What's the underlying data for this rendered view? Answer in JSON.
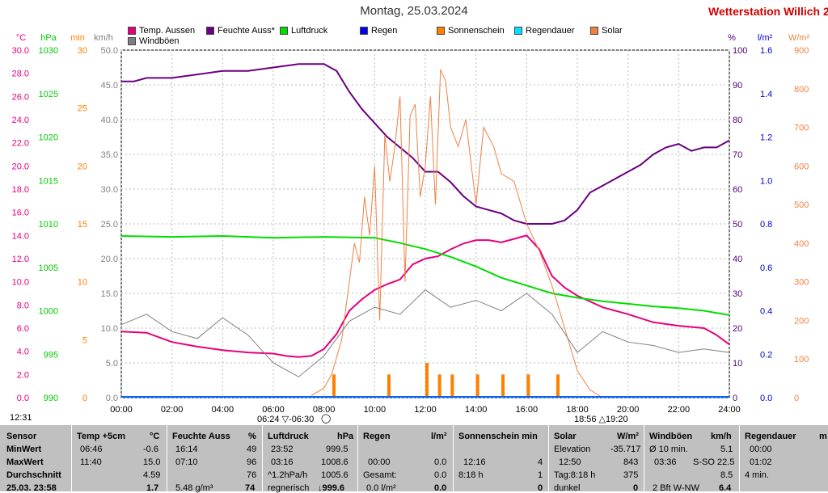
{
  "header": {
    "title": "Montag, 25.03.2024",
    "station": "Wetterstation Willich",
    "station_suffix": "2"
  },
  "legend": [
    {
      "label": "Temp. Aussen",
      "color": "#e6007e"
    },
    {
      "label": "Feuchte Auss*",
      "color": "#6a0080"
    },
    {
      "label": "Luftdruck",
      "color": "#00dd00"
    },
    {
      "label": "Regen",
      "color": "#0000ee"
    },
    {
      "label": "Sonnenschein",
      "color": "#ff8000"
    },
    {
      "label": "Regendauer",
      "color": "#00e0ff"
    },
    {
      "label": "Solar",
      "color": "#f08040"
    },
    {
      "label": "Windböen",
      "color": "#808080"
    }
  ],
  "axes": {
    "units": {
      "temp": "°C",
      "press": "hPa",
      "min": "min",
      "wind": "km/h",
      "hum": "%",
      "rain": "l/m²",
      "solar": "W/m²"
    },
    "temp_ticks": [
      "30.0",
      "28.0",
      "26.0",
      "24.0",
      "22.0",
      "20.0",
      "18.0",
      "16.0",
      "14.0",
      "12.0",
      "10.0",
      "8.0",
      "6.0",
      "4.0",
      "2.0",
      "0.0"
    ],
    "press_ticks": [
      "1030",
      "1025",
      "1020",
      "1015",
      "1010",
      "1005",
      "1000",
      "995",
      "990"
    ],
    "min_ticks": [
      "30",
      "25",
      "20",
      "15",
      "10",
      "5",
      "0"
    ],
    "wind_ticks": [
      "50.0",
      "45.0",
      "40.0",
      "35.0",
      "30.0",
      "25.0",
      "20.0",
      "15.0",
      "10.0",
      "5.0",
      "0.0"
    ],
    "hum_ticks": [
      "100",
      "90",
      "80",
      "70",
      "60",
      "50",
      "40",
      "30",
      "20",
      "10",
      "0"
    ],
    "rain_ticks": [
      "1.6",
      "1.4",
      "1.2",
      "1.0",
      "0.8",
      "0.6",
      "0.4",
      "0.2",
      "0.0"
    ],
    "solar_ticks": [
      "900",
      "800",
      "700",
      "600",
      "500",
      "400",
      "300",
      "200",
      "100",
      "0"
    ],
    "x_ticks": [
      "00:00",
      "02:00",
      "04:00",
      "06:00",
      "08:00",
      "10:00",
      "12:00",
      "14:00",
      "16:00",
      "18:00",
      "20:00",
      "22:00",
      "24:00"
    ]
  },
  "annotations": {
    "sunrise": "06:24",
    "sunrise2": "06:30",
    "sunset": "18:56",
    "sunset2": "19:20",
    "clock": "12:31"
  },
  "chart_data": {
    "type": "line",
    "x_unit": "hour",
    "x_range": [
      0,
      24
    ],
    "series": [
      {
        "name": "Temp. Aussen",
        "axis": "°C",
        "range": [
          0,
          30
        ],
        "x": [
          0,
          1,
          2,
          3,
          4,
          5,
          6,
          6.5,
          7,
          7.5,
          8,
          8.5,
          9,
          9.5,
          10,
          10.5,
          11,
          11.5,
          12,
          12.5,
          13,
          13.5,
          14,
          14.5,
          15,
          15.5,
          16,
          16.5,
          17,
          17.5,
          18,
          19,
          20,
          21,
          22,
          23,
          23.5,
          24
        ],
        "y": [
          5.7,
          5.6,
          4.8,
          4.4,
          4.1,
          3.9,
          3.8,
          3.6,
          3.5,
          3.6,
          4.2,
          5.5,
          7.5,
          8.5,
          9.3,
          9.8,
          10.2,
          11.5,
          12.0,
          12.2,
          12.8,
          13.3,
          13.6,
          13.6,
          13.4,
          13.7,
          14.0,
          12.8,
          10.5,
          9.5,
          8.8,
          7.8,
          7.2,
          6.5,
          6.2,
          6.0,
          5.4,
          4.59
        ]
      },
      {
        "name": "Feuchte Auss*",
        "axis": "%",
        "range": [
          0,
          100
        ],
        "x": [
          0,
          0.5,
          1,
          2,
          3,
          4,
          5,
          6,
          7,
          8,
          8.5,
          9,
          9.5,
          10,
          10.5,
          11,
          11.5,
          12,
          12.5,
          13,
          13.5,
          14,
          14.5,
          15,
          15.5,
          16,
          16.5,
          17,
          17.5,
          18,
          18.5,
          19,
          19.5,
          20,
          20.5,
          21,
          21.5,
          22,
          22.5,
          23,
          23.5,
          24
        ],
        "y": [
          91,
          91,
          92,
          92,
          93,
          94,
          94,
          95,
          96,
          96,
          94,
          88,
          83,
          79,
          75,
          72,
          69,
          65,
          65,
          62,
          58,
          55,
          54,
          53,
          51,
          50,
          50,
          50,
          51,
          54,
          59,
          61,
          63,
          65,
          67,
          70,
          72,
          73,
          71,
          72,
          72,
          74
        ]
      },
      {
        "name": "Luftdruck",
        "axis": "hPa",
        "range": [
          990,
          1030
        ],
        "x": [
          0,
          2,
          4,
          6,
          8,
          10,
          11,
          12,
          13,
          14,
          15,
          16,
          17,
          18,
          19,
          20,
          21,
          22,
          23,
          24
        ],
        "y": [
          1008.6,
          1008.5,
          1008.6,
          1008.4,
          1008.5,
          1008.4,
          1007.8,
          1007.1,
          1006.2,
          1005.1,
          1003.8,
          1002.9,
          1002.0,
          1001.5,
          1001.1,
          1000.8,
          1000.5,
          1000.3,
          1000.0,
          999.5
        ]
      },
      {
        "name": "Solar",
        "axis": "W/m²",
        "range": [
          0,
          900
        ],
        "x": [
          7.5,
          8,
          8.3,
          8.7,
          9.0,
          9.2,
          9.4,
          9.6,
          9.8,
          10,
          10.2,
          10.4,
          10.6,
          10.8,
          11.0,
          11.2,
          11.4,
          11.6,
          11.8,
          12.0,
          12.2,
          12.4,
          12.6,
          12.8,
          13.0,
          13.3,
          13.6,
          14,
          14.3,
          14.7,
          15.0,
          15.5,
          16,
          16.5,
          17,
          17.5,
          18,
          18.5,
          19
        ],
        "y": [
          5,
          25,
          60,
          150,
          300,
          400,
          350,
          520,
          420,
          600,
          200,
          680,
          560,
          650,
          780,
          300,
          730,
          760,
          520,
          600,
          780,
          500,
          850,
          820,
          700,
          650,
          720,
          500,
          700,
          650,
          580,
          560,
          450,
          380,
          290,
          180,
          70,
          20,
          0
        ]
      },
      {
        "name": "Windböen",
        "axis": "km/h",
        "range": [
          0,
          50
        ],
        "x": [
          0,
          1,
          2,
          3,
          4,
          5,
          6,
          7,
          8,
          9,
          10,
          11,
          12,
          13,
          14,
          15,
          16,
          17,
          18,
          19,
          20,
          21,
          22,
          23,
          24
        ],
        "y": [
          10.5,
          12.0,
          9.5,
          8.5,
          11.5,
          9.0,
          5.0,
          3.0,
          6.0,
          11.0,
          13.0,
          12.0,
          15.5,
          13.0,
          14.0,
          12.5,
          15.0,
          12.0,
          6.5,
          9.5,
          8.0,
          7.5,
          6.5,
          7.0,
          6.5
        ]
      },
      {
        "name": "Sonnenschein",
        "axis": "min",
        "type": "bar",
        "x": [
          8.33,
          10.5,
          12.0,
          12.5,
          13,
          14,
          15,
          16,
          17.17
        ],
        "y": [
          2,
          2,
          3,
          2,
          2,
          2,
          2,
          2,
          2
        ]
      }
    ]
  },
  "table": {
    "sensor": {
      "header": "Sensor",
      "rows": [
        "MinWert",
        "MaxWert",
        "Durchschnitt",
        "25.03. 23:58"
      ]
    },
    "temp": {
      "header": "Temp +5cm",
      "unit": "°C",
      "rows": [
        [
          "06:46",
          "-0.6"
        ],
        [
          "11:40",
          "15.0"
        ],
        [
          "",
          "4.59"
        ],
        [
          "",
          "1.7"
        ]
      ]
    },
    "feuchte": {
      "header": "Feuchte Auss",
      "unit": "%",
      "rows": [
        [
          "16:14",
          "49"
        ],
        [
          "07:10",
          "96"
        ],
        [
          "",
          "76"
        ],
        [
          "5.48 g/m³",
          "74"
        ]
      ]
    },
    "luftdruck": {
      "header": "Luftdruck",
      "unit": "hPa",
      "rows": [
        [
          "23:52",
          "999.5"
        ],
        [
          "03:16",
          "1008.6"
        ],
        [
          "^1.2hPa/h",
          "1005.6"
        ],
        [
          "regnerisch",
          "↓999.6"
        ]
      ]
    },
    "regen": {
      "header": "Regen",
      "unit": "l/m²",
      "rows": [
        [
          "00:00",
          "0.0"
        ],
        [
          "Gesamt:",
          "0.0"
        ],
        [
          "0.0 l/m²",
          "0.0"
        ]
      ]
    },
    "sonne": {
      "header": "Sonnenschein min",
      "rows": [
        [
          "12:16",
          "4"
        ],
        [
          "8:18 h",
          "1"
        ],
        [
          "",
          "0"
        ]
      ]
    },
    "solar": {
      "header": "Solar",
      "unit": "W/m²",
      "rows": [
        [
          "Elevation",
          "-35.717"
        ],
        [
          "12:50",
          "843"
        ],
        [
          "Tag:8:18 h",
          "375"
        ],
        [
          "dunkel",
          "0"
        ]
      ]
    },
    "wind": {
      "header": "Windböen",
      "unit": "km/h",
      "rows": [
        [
          "Ø 10 min.",
          "5.1"
        ],
        [
          "03:36",
          "S-SO 22.5"
        ],
        [
          "",
          "8.5"
        ],
        [
          "2 Bft W-NW",
          "6.4"
        ]
      ]
    },
    "regendauer": {
      "header": "Regendauer",
      "unit": "m",
      "rows": [
        "00:00",
        "01:02",
        "4 min."
      ]
    }
  }
}
